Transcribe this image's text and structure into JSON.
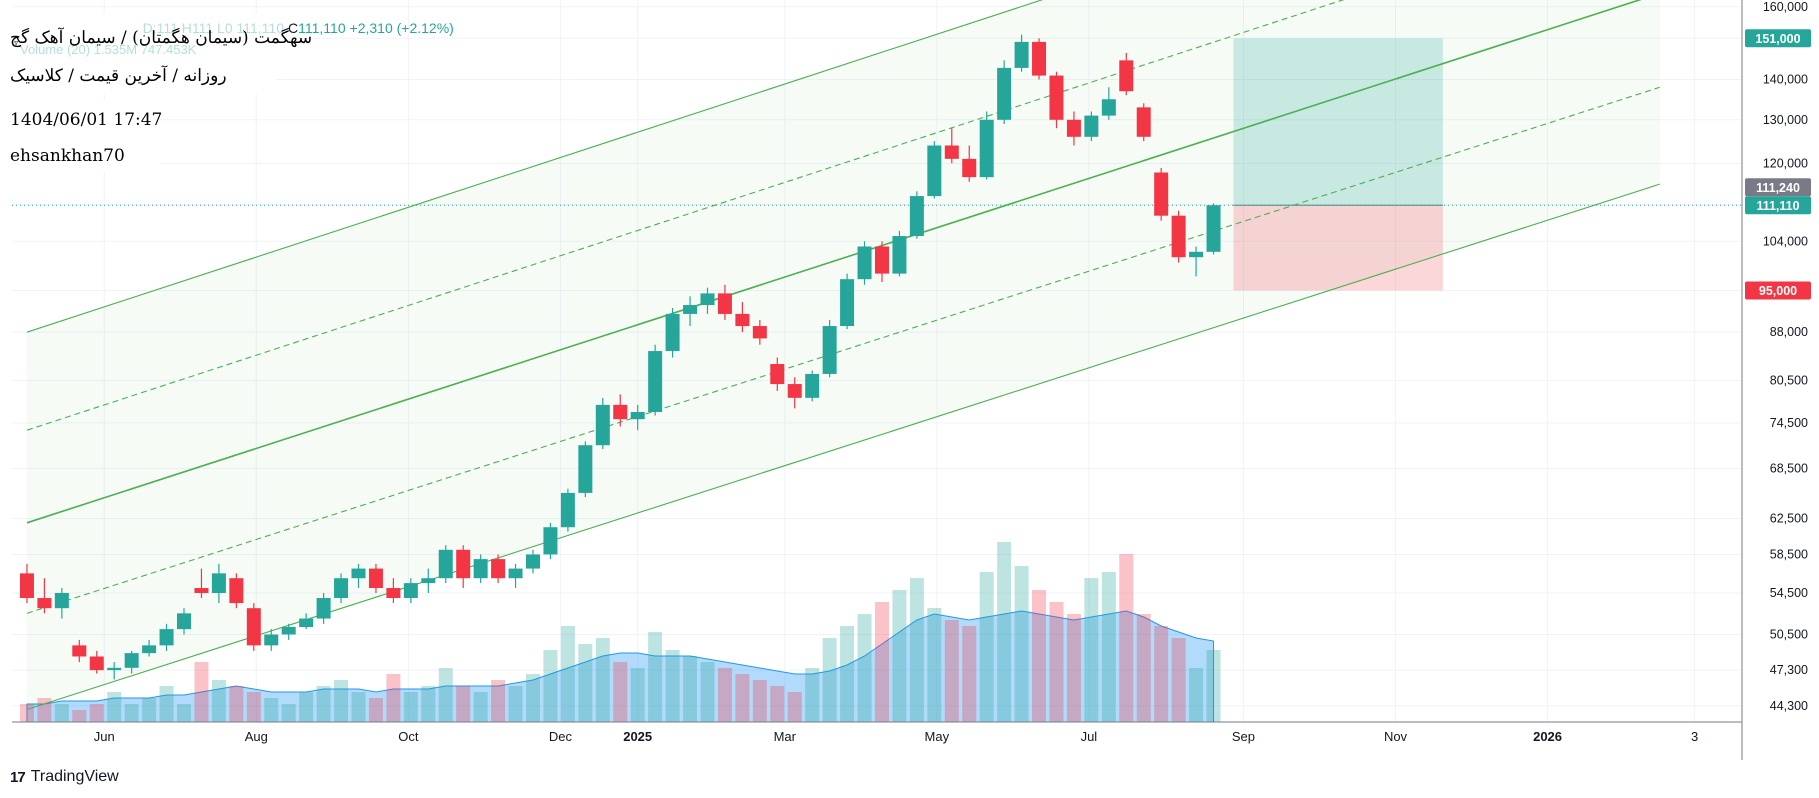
{
  "header": {
    "title": "سهگمت (سیمان هگمتان) / سیمان آهک گچ",
    "subtitle": "روزانه / آخرین قیمت / کلاسیک",
    "datetime": "1404/06/01 17:47",
    "author": "ehsankhan70",
    "ohlc_faint": "D:111 H111 L0 111,110",
    "close_label": "C",
    "close_value": "111,110",
    "change": "+2,310 (+2.12%)",
    "volume_label": "Volume (20)",
    "volume_values": "1.535M  747.453K"
  },
  "price_axis": {
    "ticks": [
      "160,000",
      "151,000",
      "140,000",
      "130,000",
      "120,000",
      "111,240",
      "111,110",
      "104,000",
      "95,000",
      "88,000",
      "80,500",
      "74,500",
      "68,500",
      "62,500",
      "58,500",
      "54,500",
      "50,500",
      "47,300",
      "44,300"
    ]
  },
  "tags": {
    "target": "151,000",
    "last_gray": "111,240",
    "last_close": "111,110",
    "stop": "95,000",
    "target_color": "#26a69a",
    "gray_color": "#787b86",
    "stop_color": "#f23645"
  },
  "time_axis": {
    "labels": [
      "Jun",
      "Aug",
      "Oct",
      "Dec",
      "2025",
      "Mar",
      "May",
      "Jul",
      "Sep",
      "Nov",
      "2026",
      "3"
    ]
  },
  "watermark": {
    "text": "TradingView"
  },
  "chart_data": {
    "type": "candlestick",
    "scale": "log",
    "ylim": [
      43000,
      162000
    ],
    "colors": {
      "up": "#26a69a",
      "down": "#f23645",
      "channel": "#4caf50",
      "volume_ma": "#2196f3"
    },
    "candles": [
      {
        "t": "2024-05-01",
        "o": 56500,
        "h": 57500,
        "l": 53500,
        "c": 54000
      },
      {
        "t": "2024-05-08",
        "o": 54000,
        "h": 56000,
        "l": 52500,
        "c": 53000
      },
      {
        "t": "2024-05-15",
        "o": 53000,
        "h": 55000,
        "l": 52000,
        "c": 54500
      },
      {
        "t": "2024-05-22",
        "o": 49500,
        "h": 50000,
        "l": 48000,
        "c": 48500
      },
      {
        "t": "2024-05-29",
        "o": 48500,
        "h": 49000,
        "l": 47000,
        "c": 47300
      },
      {
        "t": "2024-06-05",
        "o": 47300,
        "h": 48000,
        "l": 46500,
        "c": 47500
      },
      {
        "t": "2024-06-12",
        "o": 47500,
        "h": 49000,
        "l": 47000,
        "c": 48800
      },
      {
        "t": "2024-06-19",
        "o": 48800,
        "h": 50000,
        "l": 48500,
        "c": 49500
      },
      {
        "t": "2024-06-26",
        "o": 49500,
        "h": 51500,
        "l": 49000,
        "c": 51000
      },
      {
        "t": "2024-07-03",
        "o": 51000,
        "h": 53000,
        "l": 50500,
        "c": 52500
      },
      {
        "t": "2024-07-10",
        "o": 55000,
        "h": 57000,
        "l": 54000,
        "c": 54500
      },
      {
        "t": "2024-07-17",
        "o": 54500,
        "h": 57500,
        "l": 53500,
        "c": 56500
      },
      {
        "t": "2024-07-24",
        "o": 56000,
        "h": 56500,
        "l": 53000,
        "c": 53500
      },
      {
        "t": "2024-07-31",
        "o": 53000,
        "h": 53500,
        "l": 49000,
        "c": 49500
      },
      {
        "t": "2024-08-07",
        "o": 49500,
        "h": 51000,
        "l": 49000,
        "c": 50500
      },
      {
        "t": "2024-08-14",
        "o": 50500,
        "h": 51500,
        "l": 50000,
        "c": 51200
      },
      {
        "t": "2024-08-21",
        "o": 51200,
        "h": 52500,
        "l": 51000,
        "c": 52000
      },
      {
        "t": "2024-08-28",
        "o": 52000,
        "h": 54500,
        "l": 51500,
        "c": 54000
      },
      {
        "t": "2024-09-04",
        "o": 54000,
        "h": 56500,
        "l": 53500,
        "c": 56000
      },
      {
        "t": "2024-09-11",
        "o": 56000,
        "h": 57500,
        "l": 55000,
        "c": 57000
      },
      {
        "t": "2024-09-18",
        "o": 57000,
        "h": 57500,
        "l": 54500,
        "c": 55000
      },
      {
        "t": "2024-09-25",
        "o": 55000,
        "h": 56000,
        "l": 53500,
        "c": 54000
      },
      {
        "t": "2024-10-02",
        "o": 54000,
        "h": 56000,
        "l": 53500,
        "c": 55500
      },
      {
        "t": "2024-10-09",
        "o": 55500,
        "h": 57000,
        "l": 54500,
        "c": 56000
      },
      {
        "t": "2024-10-16",
        "o": 56000,
        "h": 59500,
        "l": 55500,
        "c": 59000
      },
      {
        "t": "2024-10-23",
        "o": 59000,
        "h": 59500,
        "l": 55000,
        "c": 56000
      },
      {
        "t": "2024-10-30",
        "o": 56000,
        "h": 58500,
        "l": 55500,
        "c": 58000
      },
      {
        "t": "2024-11-06",
        "o": 58000,
        "h": 58500,
        "l": 55500,
        "c": 56000
      },
      {
        "t": "2024-11-13",
        "o": 56000,
        "h": 57500,
        "l": 55000,
        "c": 57000
      },
      {
        "t": "2024-11-20",
        "o": 57000,
        "h": 59000,
        "l": 56500,
        "c": 58500
      },
      {
        "t": "2024-11-27",
        "o": 58500,
        "h": 62000,
        "l": 58000,
        "c": 61500
      },
      {
        "t": "2024-12-04",
        "o": 61500,
        "h": 66000,
        "l": 61000,
        "c": 65500
      },
      {
        "t": "2024-12-11",
        "o": 65500,
        "h": 72000,
        "l": 65000,
        "c": 71500
      },
      {
        "t": "2024-12-18",
        "o": 71500,
        "h": 78000,
        "l": 71000,
        "c": 77000
      },
      {
        "t": "2024-12-25",
        "o": 77000,
        "h": 78500,
        "l": 74000,
        "c": 75000
      },
      {
        "t": "2025-01-01",
        "o": 75000,
        "h": 77000,
        "l": 73500,
        "c": 76000
      },
      {
        "t": "2025-01-08",
        "o": 76000,
        "h": 86000,
        "l": 75500,
        "c": 85000
      },
      {
        "t": "2025-01-15",
        "o": 85000,
        "h": 92000,
        "l": 84000,
        "c": 91000
      },
      {
        "t": "2025-01-22",
        "o": 91000,
        "h": 94000,
        "l": 89000,
        "c": 92500
      },
      {
        "t": "2025-01-29",
        "o": 92500,
        "h": 95500,
        "l": 91000,
        "c": 94500
      },
      {
        "t": "2025-02-05",
        "o": 94500,
        "h": 96000,
        "l": 90000,
        "c": 91000
      },
      {
        "t": "2025-02-12",
        "o": 91000,
        "h": 93000,
        "l": 88000,
        "c": 89000
      },
      {
        "t": "2025-02-19",
        "o": 89000,
        "h": 90000,
        "l": 86000,
        "c": 87000
      },
      {
        "t": "2025-02-26",
        "o": 83000,
        "h": 84000,
        "l": 79000,
        "c": 80000
      },
      {
        "t": "2025-03-05",
        "o": 80000,
        "h": 81000,
        "l": 76500,
        "c": 78000
      },
      {
        "t": "2025-03-12",
        "o": 78000,
        "h": 82000,
        "l": 77500,
        "c": 81500
      },
      {
        "t": "2025-03-19",
        "o": 81500,
        "h": 90000,
        "l": 81000,
        "c": 89000
      },
      {
        "t": "2025-03-26",
        "o": 89000,
        "h": 98000,
        "l": 88500,
        "c": 97000
      },
      {
        "t": "2025-04-02",
        "o": 97000,
        "h": 104000,
        "l": 96000,
        "c": 103000
      },
      {
        "t": "2025-04-09",
        "o": 103000,
        "h": 104000,
        "l": 96500,
        "c": 98000
      },
      {
        "t": "2025-04-16",
        "o": 98000,
        "h": 106000,
        "l": 97500,
        "c": 105000
      },
      {
        "t": "2025-04-23",
        "o": 105000,
        "h": 114000,
        "l": 104500,
        "c": 113000
      },
      {
        "t": "2025-04-30",
        "o": 113000,
        "h": 125000,
        "l": 112500,
        "c": 124000
      },
      {
        "t": "2025-05-07",
        "o": 124000,
        "h": 128000,
        "l": 120000,
        "c": 121000
      },
      {
        "t": "2025-05-14",
        "o": 121000,
        "h": 124000,
        "l": 116000,
        "c": 117000
      },
      {
        "t": "2025-05-21",
        "o": 117000,
        "h": 132000,
        "l": 116500,
        "c": 130000
      },
      {
        "t": "2025-05-28",
        "o": 130000,
        "h": 145000,
        "l": 129000,
        "c": 143000
      },
      {
        "t": "2025-06-04",
        "o": 143000,
        "h": 152000,
        "l": 142000,
        "c": 150000
      },
      {
        "t": "2025-06-11",
        "o": 150000,
        "h": 151000,
        "l": 140000,
        "c": 141000
      },
      {
        "t": "2025-06-18",
        "o": 141000,
        "h": 142000,
        "l": 128000,
        "c": 130000
      },
      {
        "t": "2025-06-25",
        "o": 130000,
        "h": 132000,
        "l": 124000,
        "c": 126000
      },
      {
        "t": "2025-07-02",
        "o": 126000,
        "h": 132000,
        "l": 125000,
        "c": 131000
      },
      {
        "t": "2025-07-09",
        "o": 131000,
        "h": 138000,
        "l": 130000,
        "c": 135000
      },
      {
        "t": "2025-07-16",
        "o": 145000,
        "h": 147000,
        "l": 136000,
        "c": 137000
      },
      {
        "t": "2025-07-23",
        "o": 133000,
        "h": 134000,
        "l": 125000,
        "c": 126000
      },
      {
        "t": "2025-07-30",
        "o": 118000,
        "h": 119000,
        "l": 108000,
        "c": 109000
      },
      {
        "t": "2025-08-06",
        "o": 109000,
        "h": 110000,
        "l": 100000,
        "c": 101000
      },
      {
        "t": "2025-08-13",
        "o": 101000,
        "h": 103000,
        "l": 97500,
        "c": 102000
      },
      {
        "t": "2025-08-20",
        "o": 102000,
        "h": 111500,
        "l": 101500,
        "c": 111110
      }
    ],
    "volume": [
      3,
      4,
      3,
      2,
      3,
      5,
      3,
      4,
      6,
      3,
      10,
      7,
      6,
      5,
      4,
      3,
      5,
      6,
      7,
      5,
      4,
      8,
      5,
      6,
      9,
      6,
      5,
      7,
      6,
      8,
      12,
      16,
      13,
      14,
      10,
      9,
      15,
      12,
      11,
      10,
      9,
      8,
      7,
      6,
      5,
      9,
      14,
      16,
      18,
      20,
      22,
      24,
      19,
      17,
      16,
      25,
      30,
      26,
      22,
      20,
      18,
      24,
      25,
      28,
      18,
      16,
      14,
      9,
      12
    ],
    "volume_ma": [
      3,
      3,
      3.5,
      3.5,
      3.5,
      4,
      4,
      4,
      4.5,
      4.5,
      5,
      5.5,
      6,
      5.5,
      5,
      5,
      5,
      5.5,
      5.5,
      5.5,
      5,
      5.5,
      5.5,
      5.5,
      6,
      6,
      6,
      6,
      6.5,
      7,
      8,
      9,
      10,
      11,
      11.5,
      11.5,
      11,
      11,
      11,
      10.5,
      10,
      9.5,
      9,
      8.5,
      8,
      8,
      8.5,
      9.5,
      11,
      13,
      15,
      17,
      18,
      17.5,
      17,
      17.5,
      18,
      18.5,
      18,
      17.5,
      17,
      17.5,
      18,
      18.5,
      17.5,
      16,
      15,
      14,
      13.5
    ],
    "regression_channel": {
      "start": "2024-05-01",
      "end": "2026-02-15",
      "upper_start": 88000,
      "upper_end": 235000,
      "upper_mid_start": 73500,
      "upper_mid_end": 196000,
      "center_start": 62000,
      "center_end": 164000,
      "lower_mid_start": 52500,
      "lower_mid_end": 138000,
      "lower_start": 44000,
      "lower_end": 115500
    },
    "position": {
      "start": "2025-08-28",
      "end": "2025-11-20",
      "entry": 111110,
      "target": 151000,
      "stop": 95000
    }
  }
}
